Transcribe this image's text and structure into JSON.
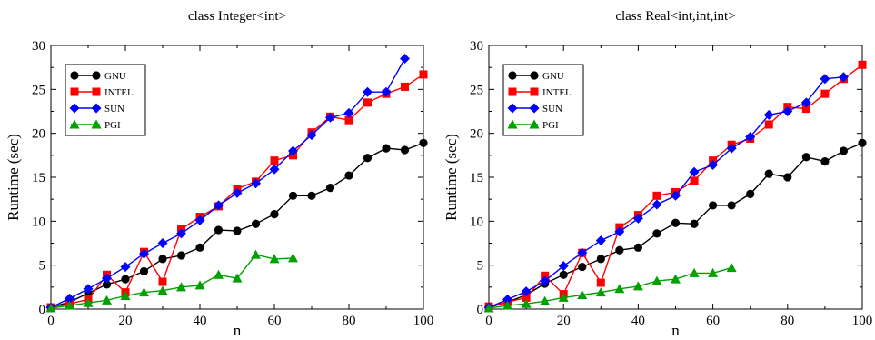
{
  "chart_data": [
    {
      "type": "line",
      "title": "class Integer<int>",
      "xlabel": "n",
      "ylabel": "Runtime (sec)",
      "xlim": [
        0,
        100
      ],
      "ylim": [
        0,
        30
      ],
      "xticks": [
        "0",
        "20",
        "40",
        "60",
        "80",
        "100"
      ],
      "yticks": [
        "0",
        "5",
        "10",
        "15",
        "20",
        "25",
        "30"
      ],
      "grid": false,
      "legend_position": "top-left",
      "series": [
        {
          "name": "GNU",
          "color": "#000000",
          "marker": "circle",
          "x": [
            0,
            5,
            10,
            15,
            20,
            25,
            30,
            35,
            40,
            45,
            50,
            55,
            60,
            65,
            70,
            75,
            80,
            85,
            90,
            95,
            100
          ],
          "y": [
            0.2,
            0.8,
            1.8,
            2.8,
            3.4,
            4.3,
            5.7,
            6.1,
            7.0,
            9.0,
            8.9,
            9.7,
            10.8,
            12.9,
            12.9,
            13.8,
            15.2,
            17.2,
            18.3,
            18.1,
            18.9
          ]
        },
        {
          "name": "INTEL",
          "color": "#ff0000",
          "marker": "square",
          "x": [
            0,
            5,
            10,
            15,
            20,
            25,
            30,
            35,
            40,
            45,
            50,
            55,
            60,
            65,
            70,
            75,
            80,
            85,
            90,
            95,
            100
          ],
          "y": [
            0.2,
            0.6,
            1.1,
            3.9,
            1.9,
            6.5,
            3.1,
            9.1,
            10.5,
            11.7,
            13.7,
            14.5,
            16.9,
            17.5,
            20.1,
            21.9,
            21.5,
            23.5,
            24.5,
            25.3,
            26.7
          ]
        },
        {
          "name": "SUN",
          "color": "#0000ff",
          "marker": "diamond",
          "x": [
            0,
            5,
            10,
            15,
            20,
            25,
            30,
            35,
            40,
            45,
            50,
            55,
            60,
            65,
            70,
            75,
            80,
            85,
            90,
            95
          ],
          "y": [
            0.2,
            1.2,
            2.3,
            3.5,
            4.8,
            6.3,
            7.5,
            8.6,
            10.1,
            11.8,
            13.2,
            14.3,
            15.9,
            18.0,
            19.8,
            21.8,
            22.3,
            24.7,
            24.7,
            28.5
          ]
        },
        {
          "name": "PGI",
          "color": "#00a000",
          "marker": "triangle",
          "x": [
            0,
            5,
            10,
            15,
            20,
            25,
            30,
            35,
            40,
            45,
            50,
            55,
            60,
            65
          ],
          "y": [
            0.1,
            0.4,
            0.7,
            1.0,
            1.5,
            1.9,
            2.1,
            2.5,
            2.7,
            3.9,
            3.5,
            6.2,
            5.7,
            5.8
          ]
        }
      ]
    },
    {
      "type": "line",
      "title": "class Real<int,int,int>",
      "xlabel": "n",
      "ylabel": "Runtime (sec)",
      "xlim": [
        0,
        100
      ],
      "ylim": [
        0,
        30
      ],
      "xticks": [
        "0",
        "20",
        "40",
        "60",
        "80",
        "100"
      ],
      "yticks": [
        "0",
        "5",
        "10",
        "15",
        "20",
        "25",
        "30"
      ],
      "grid": false,
      "legend_position": "top-left",
      "series": [
        {
          "name": "GNU",
          "color": "#000000",
          "marker": "circle",
          "x": [
            0,
            5,
            10,
            15,
            20,
            25,
            30,
            35,
            40,
            45,
            50,
            55,
            60,
            65,
            70,
            75,
            80,
            85,
            90,
            95,
            100
          ],
          "y": [
            0.2,
            0.8,
            1.6,
            2.9,
            3.9,
            4.8,
            5.7,
            6.7,
            7.0,
            8.6,
            9.8,
            9.7,
            11.8,
            11.8,
            13.1,
            15.4,
            15.0,
            17.3,
            16.8,
            18.0,
            18.9
          ]
        },
        {
          "name": "INTEL",
          "color": "#ff0000",
          "marker": "square",
          "x": [
            0,
            5,
            10,
            15,
            20,
            25,
            30,
            35,
            40,
            45,
            50,
            55,
            60,
            65,
            70,
            75,
            80,
            85,
            90,
            95,
            100
          ],
          "y": [
            0.3,
            0.8,
            1.3,
            3.8,
            1.7,
            6.4,
            3.0,
            9.3,
            10.7,
            12.9,
            13.3,
            14.6,
            16.9,
            18.7,
            19.4,
            21.0,
            23.0,
            22.8,
            24.5,
            26.2,
            27.8
          ]
        },
        {
          "name": "SUN",
          "color": "#0000ff",
          "marker": "diamond",
          "x": [
            0,
            5,
            10,
            15,
            20,
            25,
            30,
            35,
            40,
            45,
            50,
            55,
            60,
            65,
            70,
            75,
            80,
            85,
            90,
            95
          ],
          "y": [
            0.2,
            1.1,
            2.0,
            3.2,
            4.9,
            6.4,
            7.8,
            8.8,
            10.3,
            11.9,
            12.9,
            15.6,
            16.4,
            18.3,
            19.6,
            22.1,
            22.5,
            23.5,
            26.2,
            26.4
          ]
        },
        {
          "name": "PGI",
          "color": "#00a000",
          "marker": "triangle",
          "x": [
            0,
            5,
            10,
            15,
            20,
            25,
            30,
            35,
            40,
            45,
            50,
            55,
            60,
            65
          ],
          "y": [
            0.1,
            0.4,
            0.6,
            0.9,
            1.3,
            1.6,
            1.9,
            2.3,
            2.6,
            3.2,
            3.4,
            4.1,
            4.1,
            4.7
          ]
        }
      ]
    }
  ]
}
